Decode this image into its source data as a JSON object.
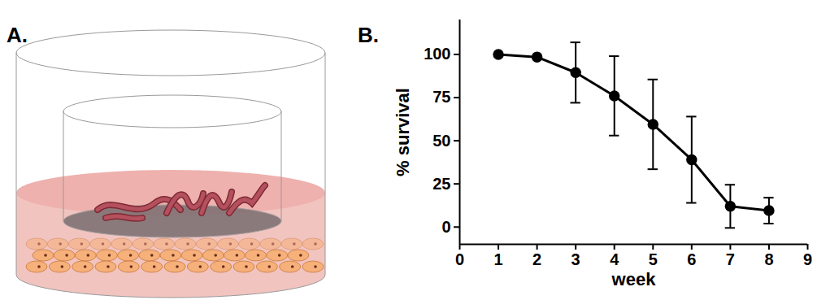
{
  "panel_labels": {
    "diagram": "A.",
    "chart": "B."
  },
  "chart_data": {
    "type": "line",
    "x": [
      1,
      2,
      3,
      4,
      5,
      6,
      7,
      8
    ],
    "values": [
      100,
      98.5,
      89.5,
      76,
      59.5,
      39,
      12,
      9.5
    ],
    "errors": [
      0,
      0,
      17.5,
      23,
      26,
      25,
      12.5,
      7.5
    ],
    "color": "#000000",
    "marker": "circle",
    "line_style": "solid",
    "xlabel": "week",
    "ylabel": "% survival",
    "xlim": [
      0,
      9
    ],
    "xticks": [
      0,
      1,
      2,
      3,
      4,
      5,
      6,
      7,
      8,
      9
    ],
    "ylim": [
      -10,
      120
    ],
    "yticks": [
      0,
      25,
      50,
      75,
      100
    ],
    "grid": false
  }
}
